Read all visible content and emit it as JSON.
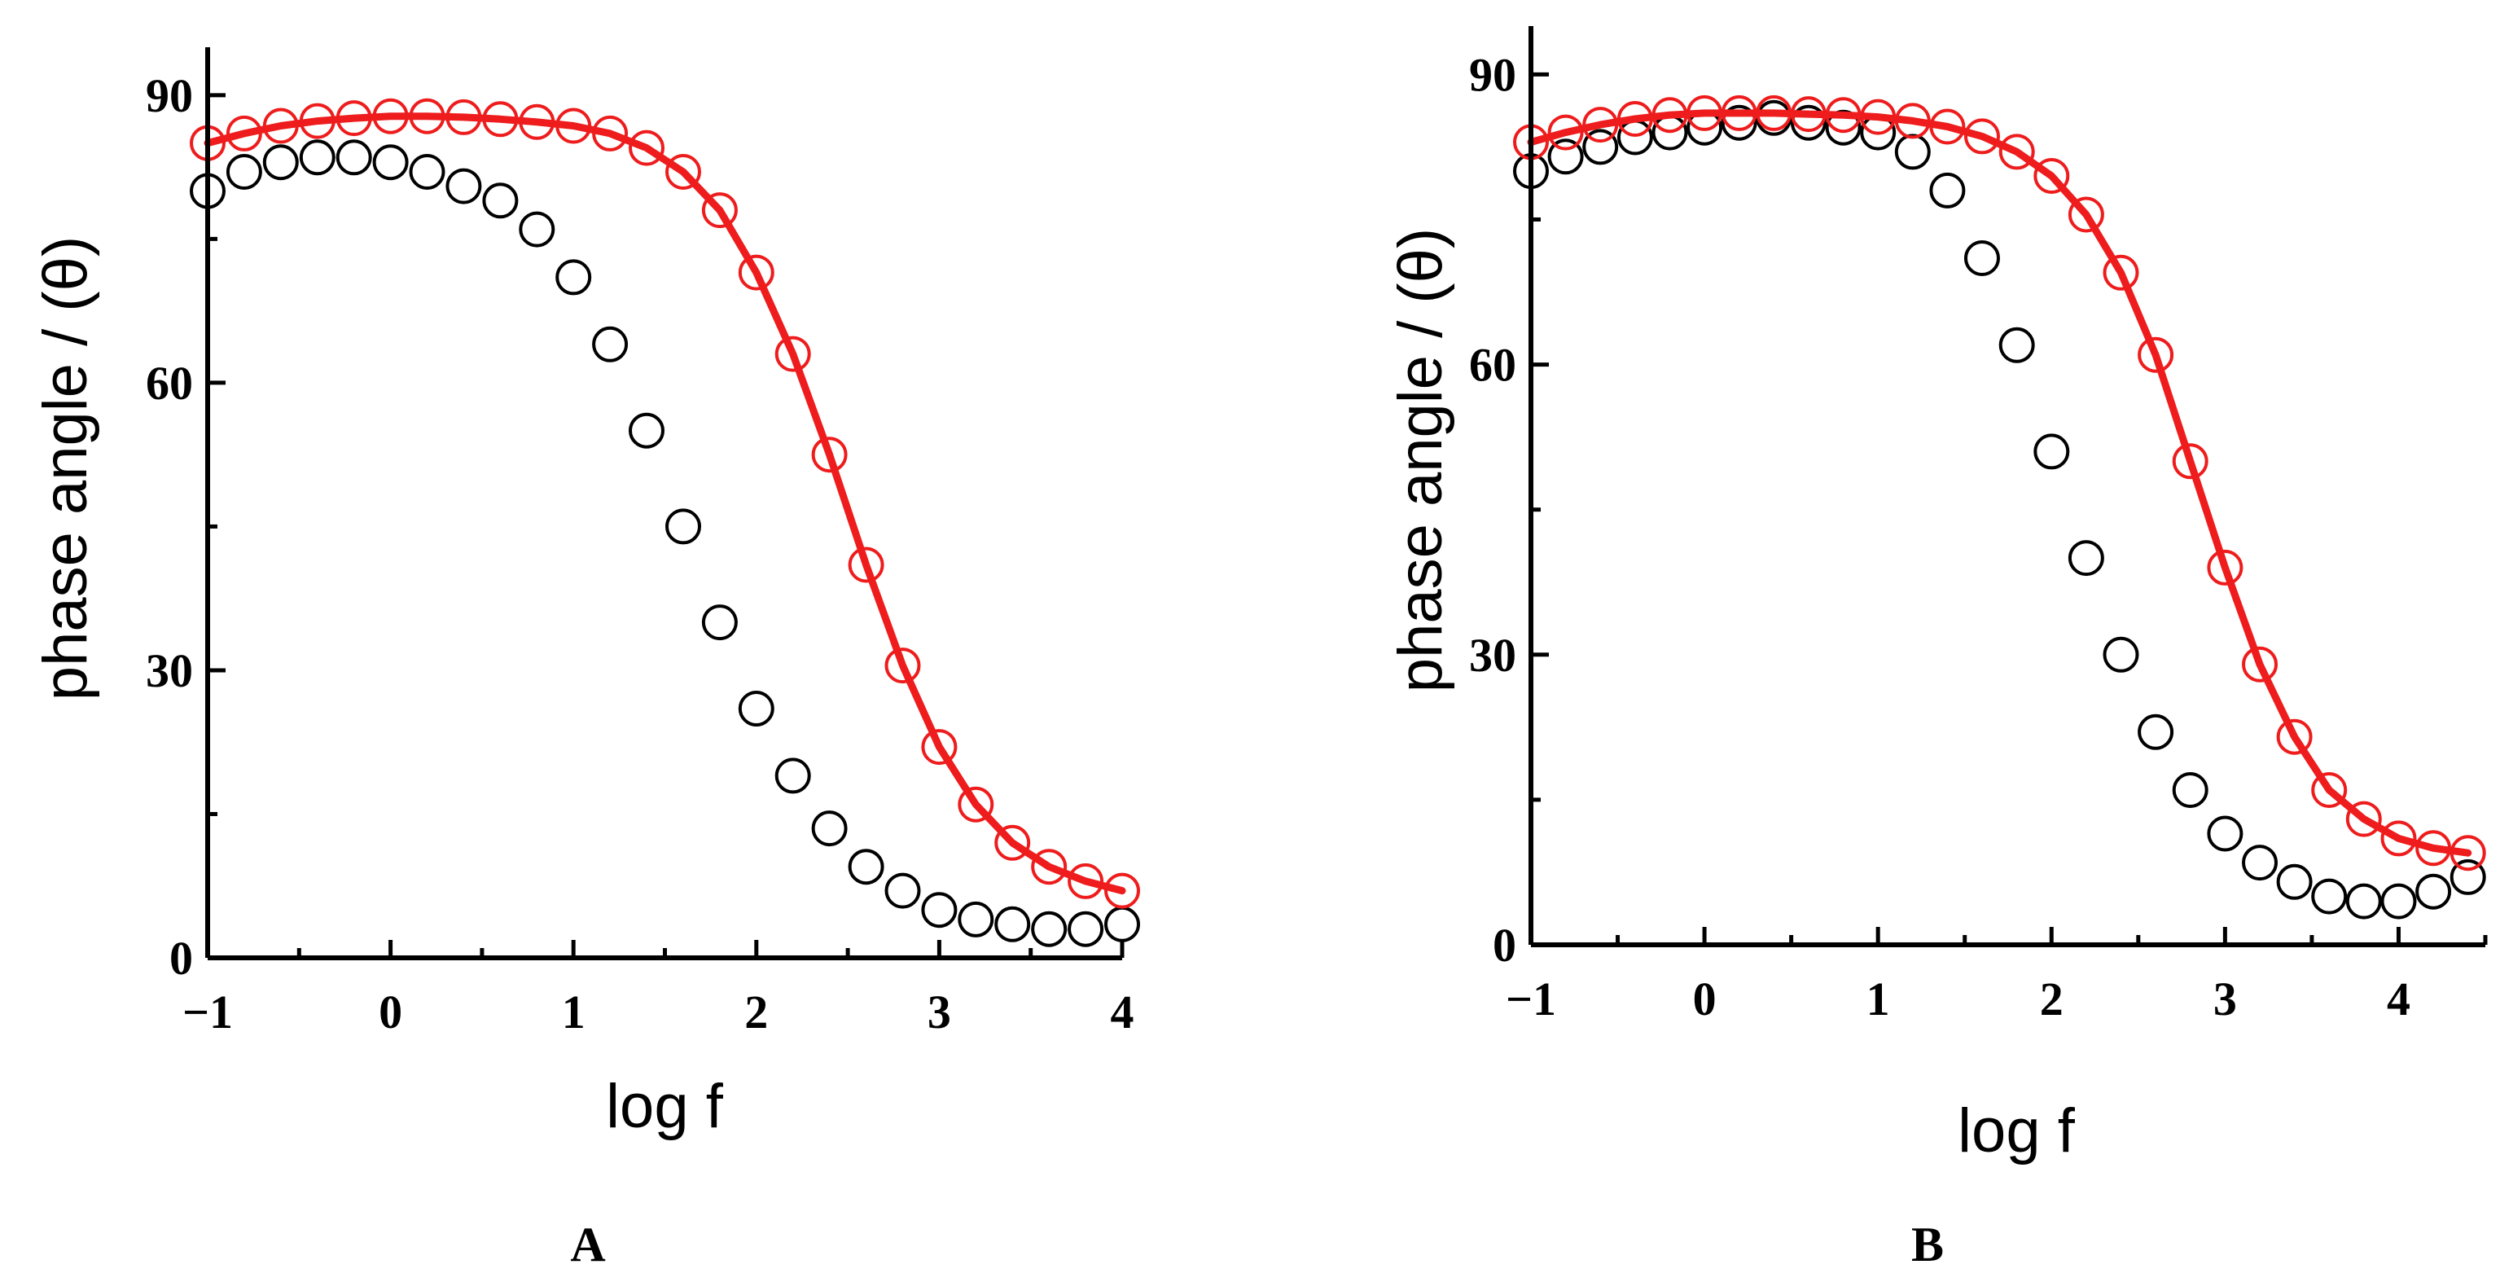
{
  "chart_data": [
    {
      "type": "scatter",
      "panel_label": "A",
      "xlabel": "log f",
      "ylabel": "phase angle / (θ)",
      "xlim": [
        -1,
        4
      ],
      "ylim": [
        0,
        95
      ],
      "x_ticks": [
        -1,
        0,
        1,
        2,
        3,
        4
      ],
      "x_tick_labels": [
        "−1",
        "0",
        "1",
        "2",
        "3",
        "4"
      ],
      "y_ticks": [
        0,
        30,
        60,
        90
      ],
      "y_tick_labels": [
        "0",
        "30",
        "60",
        "90"
      ],
      "series": [
        {
          "name": "black circles",
          "color": "#000000",
          "marker": "open-circle",
          "fit_line": false,
          "x": [
            -1.0,
            -0.8,
            -0.6,
            -0.4,
            -0.2,
            0.0,
            0.2,
            0.4,
            0.6,
            0.8,
            1.0,
            1.2,
            1.4,
            1.6,
            1.8,
            2.0,
            2.2,
            2.4,
            2.6,
            2.8,
            3.0,
            3.2,
            3.4,
            3.6,
            3.8,
            4.0
          ],
          "y": [
            80,
            82,
            83,
            83.5,
            83.5,
            83,
            82,
            80.5,
            79,
            76,
            71,
            64,
            55,
            45,
            35,
            26,
            19,
            13.5,
            9.5,
            7,
            5,
            4,
            3.5,
            3,
            3,
            3.5
          ]
        },
        {
          "name": "red circles",
          "color": "#ee1c1c",
          "marker": "open-circle",
          "fit_line": true,
          "x": [
            -1.0,
            -0.8,
            -0.6,
            -0.4,
            -0.2,
            0.0,
            0.2,
            0.4,
            0.6,
            0.8,
            1.0,
            1.2,
            1.4,
            1.6,
            1.8,
            2.0,
            2.2,
            2.4,
            2.6,
            2.8,
            3.0,
            3.2,
            3.4,
            3.6,
            3.8,
            4.0
          ],
          "y": [
            85,
            86,
            86.8,
            87.3,
            87.6,
            87.8,
            87.8,
            87.7,
            87.5,
            87.2,
            86.8,
            86,
            84.5,
            82,
            78,
            71.5,
            63,
            52.5,
            41,
            30.5,
            22,
            16,
            12,
            9.5,
            8,
            7
          ]
        }
      ]
    },
    {
      "type": "scatter",
      "panel_label": "B",
      "xlabel": "log f",
      "ylabel": "phase angle / (θ)",
      "xlim": [
        -1,
        4.5
      ],
      "ylim": [
        0,
        95
      ],
      "x_ticks": [
        -1,
        0,
        1,
        2,
        3,
        4
      ],
      "x_tick_labels": [
        "−1",
        "0",
        "1",
        "2",
        "3",
        "4"
      ],
      "y_ticks": [
        0,
        30,
        60,
        90
      ],
      "y_tick_labels": [
        "0",
        "30",
        "60",
        "90"
      ],
      "series": [
        {
          "name": "black circles",
          "color": "#000000",
          "marker": "open-circle",
          "fit_line": false,
          "x": [
            -1.0,
            -0.8,
            -0.6,
            -0.4,
            -0.2,
            0.0,
            0.2,
            0.4,
            0.6,
            0.8,
            1.0,
            1.2,
            1.4,
            1.6,
            1.8,
            2.0,
            2.2,
            2.4,
            2.6,
            2.8,
            3.0,
            3.2,
            3.4,
            3.6,
            3.8,
            4.0,
            4.2,
            4.4
          ],
          "y": [
            80,
            81.5,
            82.5,
            83.5,
            84,
            84.5,
            85,
            85.5,
            85,
            84.5,
            84,
            82,
            78,
            71,
            62,
            51,
            40,
            30,
            22,
            16,
            11.5,
            8.5,
            6.5,
            5,
            4.5,
            4.5,
            5.5,
            7
          ]
        },
        {
          "name": "red circles",
          "color": "#ee1c1c",
          "marker": "open-circle",
          "fit_line": true,
          "x": [
            -1.0,
            -0.8,
            -0.6,
            -0.4,
            -0.2,
            0.0,
            0.2,
            0.4,
            0.6,
            0.8,
            1.0,
            1.2,
            1.4,
            1.6,
            1.8,
            2.0,
            2.2,
            2.4,
            2.6,
            2.8,
            3.0,
            3.2,
            3.4,
            3.6,
            3.8,
            4.0,
            4.2,
            4.4
          ],
          "y": [
            83,
            84,
            84.8,
            85.4,
            85.8,
            86,
            86,
            86,
            85.9,
            85.8,
            85.6,
            85.2,
            84.6,
            83.6,
            82,
            79.5,
            75.5,
            69.5,
            61,
            50,
            39,
            29,
            21.5,
            16,
            13,
            11,
            10,
            9.5
          ]
        }
      ]
    }
  ]
}
